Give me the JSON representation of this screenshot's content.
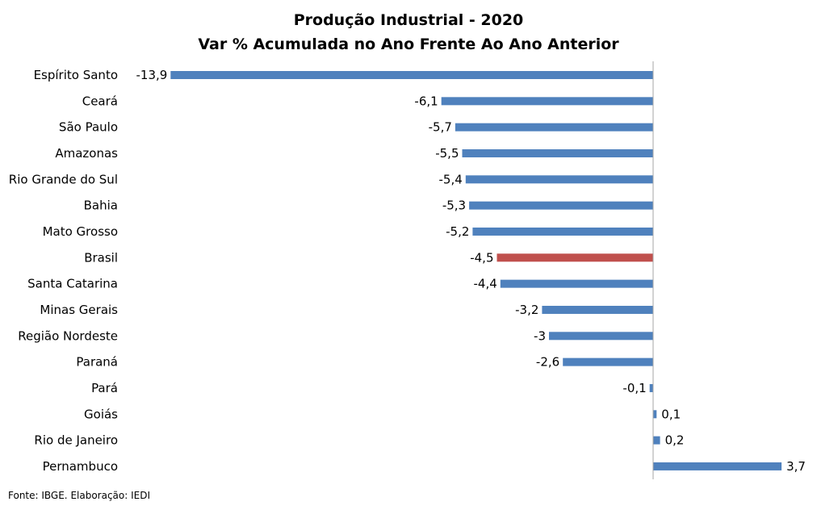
{
  "source_note": "Fonte: IBGE. Elaboração: IEDI",
  "colors": {
    "bar_default": "#4f81bd",
    "bar_highlight": "#c0504d",
    "axis": "#a6a6a6"
  },
  "chart_data": {
    "type": "bar",
    "orientation": "horizontal",
    "title": "Produção Industrial - 2020",
    "subtitle": "Var % Acumulada no Ano Frente Ao Ano Anterior",
    "xlabel": "",
    "ylabel": "",
    "xlim": [
      -15.0,
      5.0
    ],
    "grid": false,
    "legend": "none",
    "highlight_category": "Brasil",
    "categories": [
      "Espírito Santo",
      "Ceará",
      "São Paulo",
      "Amazonas",
      "Rio Grande do Sul",
      "Bahia",
      "Mato Grosso",
      "Brasil",
      "Santa Catarina",
      "Minas Gerais",
      "Região Nordeste",
      "Paraná",
      "Pará",
      "Goiás",
      "Rio de Janeiro",
      "Pernambuco"
    ],
    "values": [
      -13.9,
      -6.1,
      -5.7,
      -5.5,
      -5.4,
      -5.3,
      -5.2,
      -4.5,
      -4.4,
      -3.2,
      -3,
      -2.6,
      -0.1,
      0.1,
      0.2,
      3.7
    ],
    "value_labels": [
      "-13,9",
      "-6,1",
      "-5,7",
      "-5,5",
      "-5,4",
      "-5,3",
      "-5,2",
      "-4,5",
      "-4,4",
      "-3,2",
      "-3",
      "-2,6",
      "-0,1",
      "0,1",
      "0,2",
      "3,7"
    ]
  }
}
